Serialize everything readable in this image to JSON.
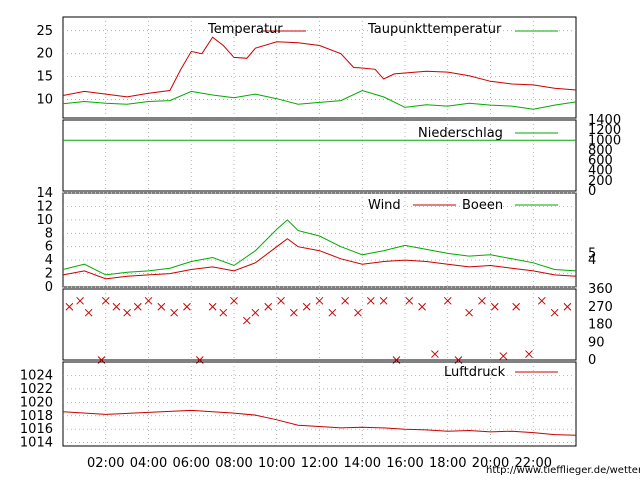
{
  "hours": [
    "02:00",
    "04:00",
    "06:00",
    "08:00",
    "10:00",
    "12:00",
    "14:00",
    "16:00",
    "18:00",
    "20:00",
    "22:00"
  ],
  "hour_values": [
    2,
    4,
    6,
    8,
    10,
    12,
    14,
    16,
    18,
    20,
    22
  ],
  "url": "http://www.tiefflieger.de/wetter/",
  "colors": {
    "primary": "#cc0000",
    "secondary": "#00aa00"
  },
  "chart_data": [
    {
      "type": "line",
      "series": [
        {
          "name": "Temperatur",
          "color": "#cc0000",
          "points": [
            [
              0,
              10.9
            ],
            [
              1,
              11.8
            ],
            [
              2,
              11.2
            ],
            [
              3,
              10.6
            ],
            [
              4,
              11.4
            ],
            [
              5,
              12.0
            ],
            [
              5.5,
              16.5
            ],
            [
              6,
              20.5
            ],
            [
              6.5,
              20.0
            ],
            [
              7,
              23.6
            ],
            [
              7.5,
              21.8
            ],
            [
              8,
              19.2
            ],
            [
              8.6,
              19.0
            ],
            [
              9,
              21.2
            ],
            [
              10,
              22.6
            ],
            [
              11,
              22.4
            ],
            [
              12,
              21.8
            ],
            [
              13,
              20.0
            ],
            [
              13.6,
              17.0
            ],
            [
              14,
              16.9
            ],
            [
              14.6,
              16.6
            ],
            [
              15,
              14.5
            ],
            [
              15.5,
              15.6
            ],
            [
              17,
              16.2
            ],
            [
              18,
              16.0
            ],
            [
              19,
              15.2
            ],
            [
              20,
              14.0
            ],
            [
              21,
              13.4
            ],
            [
              22,
              13.2
            ],
            [
              23,
              12.5
            ],
            [
              24,
              12.1
            ]
          ]
        },
        {
          "name": "Taupunkttemperatur",
          "color": "#00aa00",
          "points": [
            [
              0,
              9.1
            ],
            [
              1,
              9.6
            ],
            [
              2,
              9.2
            ],
            [
              3,
              9.0
            ],
            [
              4,
              9.6
            ],
            [
              5,
              9.8
            ],
            [
              6,
              11.8
            ],
            [
              7,
              11.0
            ],
            [
              8,
              10.4
            ],
            [
              9,
              11.2
            ],
            [
              10,
              10.2
            ],
            [
              11,
              9.0
            ],
            [
              12,
              9.4
            ],
            [
              13,
              9.8
            ],
            [
              14,
              12.0
            ],
            [
              15,
              10.6
            ],
            [
              16,
              8.3
            ],
            [
              17,
              8.9
            ],
            [
              18,
              8.6
            ],
            [
              19,
              9.2
            ],
            [
              20,
              8.8
            ],
            [
              21,
              8.6
            ],
            [
              22,
              7.9
            ],
            [
              23,
              8.8
            ],
            [
              24,
              9.5
            ]
          ]
        }
      ],
      "yticks": [
        10,
        15,
        20,
        25
      ],
      "ylim": [
        6,
        28
      ]
    },
    {
      "type": "line",
      "series": [
        {
          "name": "Niederschlag",
          "color": "#00aa00",
          "points": [
            [
              0,
              1000
            ],
            [
              24,
              1000
            ]
          ]
        }
      ],
      "yticks_right": [
        0,
        200,
        400,
        600,
        800,
        1000,
        1200,
        1400
      ],
      "ylim": [
        0,
        1400
      ]
    },
    {
      "type": "line",
      "series": [
        {
          "name": "Wind",
          "color": "#cc0000",
          "points": [
            [
              0,
              1.8
            ],
            [
              1,
              2.4
            ],
            [
              2,
              1.2
            ],
            [
              3,
              1.6
            ],
            [
              4,
              1.8
            ],
            [
              5,
              2.0
            ],
            [
              6,
              2.6
            ],
            [
              7,
              3.0
            ],
            [
              8,
              2.4
            ],
            [
              9,
              3.6
            ],
            [
              10,
              6.0
            ],
            [
              10.5,
              7.2
            ],
            [
              11,
              6.0
            ],
            [
              12,
              5.4
            ],
            [
              13,
              4.2
            ],
            [
              14,
              3.4
            ],
            [
              15,
              3.8
            ],
            [
              16,
              4.0
            ],
            [
              17,
              3.8
            ],
            [
              18,
              3.4
            ],
            [
              19,
              3.0
            ],
            [
              20,
              3.2
            ],
            [
              21,
              2.8
            ],
            [
              22,
              2.4
            ],
            [
              23,
              1.8
            ],
            [
              24,
              1.6
            ]
          ]
        },
        {
          "name": "Boeen",
          "color": "#00aa00",
          "points": [
            [
              0,
              2.6
            ],
            [
              1,
              3.4
            ],
            [
              2,
              1.8
            ],
            [
              3,
              2.2
            ],
            [
              4,
              2.4
            ],
            [
              5,
              2.8
            ],
            [
              6,
              3.8
            ],
            [
              7,
              4.4
            ],
            [
              8,
              3.2
            ],
            [
              9,
              5.4
            ],
            [
              10,
              8.6
            ],
            [
              10.5,
              10.0
            ],
            [
              11,
              8.4
            ],
            [
              12,
              7.6
            ],
            [
              13,
              6.0
            ],
            [
              14,
              4.8
            ],
            [
              15,
              5.4
            ],
            [
              16,
              6.2
            ],
            [
              17,
              5.6
            ],
            [
              18,
              5.0
            ],
            [
              19,
              4.6
            ],
            [
              20,
              4.8
            ],
            [
              21,
              4.2
            ],
            [
              22,
              3.6
            ],
            [
              23,
              2.6
            ],
            [
              24,
              2.4
            ]
          ]
        }
      ],
      "yticks": [
        0,
        2,
        4,
        6,
        8,
        10,
        12,
        14
      ],
      "yticks_right": [
        4,
        5
      ],
      "ylim": [
        0,
        14
      ]
    },
    {
      "type": "scatter",
      "series": [
        {
          "name": "",
          "color": "#cc0000",
          "points": [
            [
              0.3,
              270
            ],
            [
              0.8,
              300
            ],
            [
              1.2,
              240
            ],
            [
              1.8,
              0
            ],
            [
              2.0,
              300
            ],
            [
              2.5,
              270
            ],
            [
              3.0,
              240
            ],
            [
              3.5,
              270
            ],
            [
              4.0,
              300
            ],
            [
              4.6,
              270
            ],
            [
              5.2,
              240
            ],
            [
              5.8,
              270
            ],
            [
              6.4,
              0
            ],
            [
              7.0,
              270
            ],
            [
              7.5,
              240
            ],
            [
              8.0,
              300
            ],
            [
              8.6,
              200
            ],
            [
              9.0,
              240
            ],
            [
              9.6,
              270
            ],
            [
              10.2,
              300
            ],
            [
              10.8,
              240
            ],
            [
              11.4,
              270
            ],
            [
              12.0,
              300
            ],
            [
              12.6,
              240
            ],
            [
              13.2,
              300
            ],
            [
              13.8,
              240
            ],
            [
              14.4,
              300
            ],
            [
              15.0,
              300
            ],
            [
              15.6,
              0
            ],
            [
              16.2,
              300
            ],
            [
              16.8,
              270
            ],
            [
              17.4,
              30
            ],
            [
              18.0,
              300
            ],
            [
              18.5,
              0
            ],
            [
              19.0,
              240
            ],
            [
              19.6,
              300
            ],
            [
              20.2,
              270
            ],
            [
              20.6,
              20
            ],
            [
              21.2,
              270
            ],
            [
              21.8,
              30
            ],
            [
              22.4,
              300
            ],
            [
              23.0,
              240
            ],
            [
              23.6,
              270
            ]
          ]
        }
      ],
      "yticks_right": [
        0,
        90,
        180,
        270,
        360
      ],
      "ylim": [
        0,
        360
      ]
    },
    {
      "type": "line",
      "series": [
        {
          "name": "Luftdruck",
          "color": "#cc0000",
          "points": [
            [
              0,
              1018.6
            ],
            [
              2,
              1018.2
            ],
            [
              4,
              1018.5
            ],
            [
              6,
              1018.8
            ],
            [
              8,
              1018.4
            ],
            [
              9,
              1018.1
            ],
            [
              10,
              1017.4
            ],
            [
              11,
              1016.6
            ],
            [
              12,
              1016.4
            ],
            [
              13,
              1016.2
            ],
            [
              14,
              1016.3
            ],
            [
              15,
              1016.2
            ],
            [
              16,
              1016.0
            ],
            [
              17,
              1015.9
            ],
            [
              18,
              1015.7
            ],
            [
              19,
              1015.8
            ],
            [
              20,
              1015.6
            ],
            [
              21,
              1015.7
            ],
            [
              22,
              1015.5
            ],
            [
              23,
              1015.2
            ],
            [
              24,
              1015.1
            ]
          ]
        }
      ],
      "yticks": [
        1014,
        1016,
        1018,
        1020,
        1022,
        1024
      ],
      "ylim": [
        1013.5,
        1026
      ]
    }
  ]
}
